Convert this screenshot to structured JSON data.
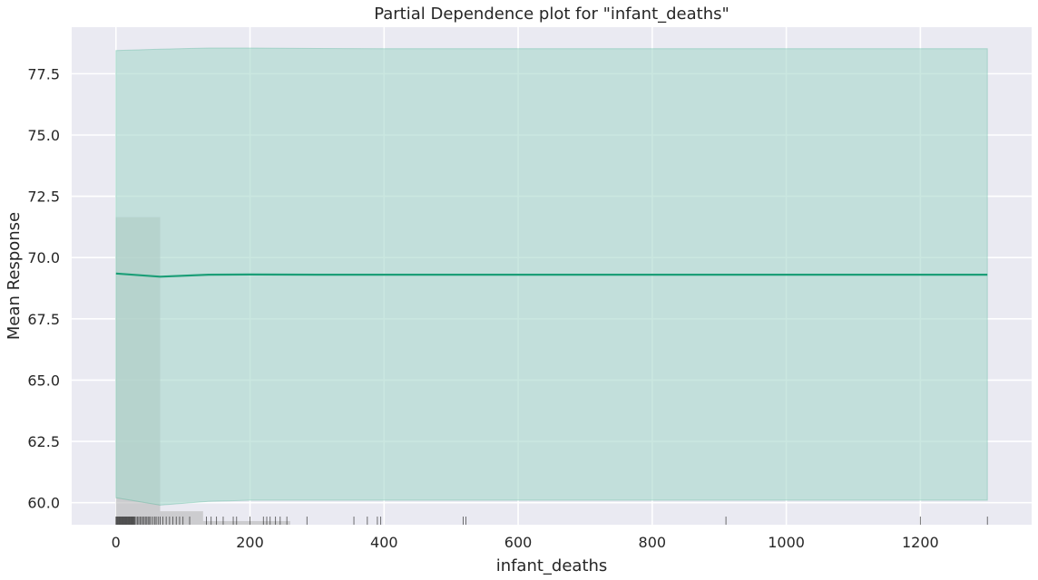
{
  "chart_data": {
    "type": "line",
    "title": "Partial Dependence plot for \"infant_deaths\"",
    "xlabel": "infant_deaths",
    "ylabel": "Mean Response",
    "xlim": [
      -66,
      1366
    ],
    "ylim": [
      59.1,
      79.4
    ],
    "xticks": [
      0,
      200,
      400,
      600,
      800,
      1000,
      1200
    ],
    "yticks": [
      60.0,
      62.5,
      65.0,
      67.5,
      70.0,
      72.5,
      75.0,
      77.5
    ],
    "grid": true,
    "colors": {
      "background": "#eaeaf2",
      "grid": "#ffffff",
      "line": "#1b9e77",
      "band": "#a6d7cb",
      "histogram": "#b3b3b3",
      "rug": "#222222"
    },
    "series": [
      {
        "x": [
          0,
          66,
          138,
          200,
          300,
          400,
          500,
          600,
          700,
          800,
          900,
          1000,
          1100,
          1200,
          1300
        ],
        "y": [
          69.35,
          69.22,
          69.3,
          69.31,
          69.3,
          69.3,
          69.3,
          69.3,
          69.3,
          69.3,
          69.3,
          69.3,
          69.3,
          69.3,
          69.3
        ],
        "lower": [
          60.2,
          59.9,
          60.05,
          60.1,
          60.1,
          60.1,
          60.1,
          60.1,
          60.1,
          60.1,
          60.1,
          60.1,
          60.1,
          60.1,
          60.1
        ],
        "upper": [
          78.45,
          78.5,
          78.55,
          78.55,
          78.53,
          78.52,
          78.52,
          78.52,
          78.52,
          78.52,
          78.52,
          78.52,
          78.52,
          78.52,
          78.52
        ]
      }
    ],
    "histogram": {
      "bins": [
        [
          0,
          66,
          71.65
        ],
        [
          66,
          130,
          59.65
        ],
        [
          130,
          260,
          59.25
        ]
      ]
    },
    "rug": [
      0,
      1,
      2,
      3,
      4,
      5,
      6,
      7,
      8,
      9,
      10,
      11,
      12,
      13,
      14,
      15,
      16,
      17,
      18,
      19,
      20,
      21,
      22,
      23,
      24,
      25,
      26,
      27,
      28,
      30,
      32,
      34,
      36,
      38,
      40,
      42,
      44,
      46,
      48,
      50,
      52,
      55,
      58,
      60,
      63,
      66,
      70,
      75,
      80,
      85,
      90,
      95,
      100,
      110,
      135,
      142,
      150,
      160,
      175,
      180,
      200,
      220,
      225,
      230,
      238,
      245,
      255,
      285,
      355,
      375,
      390,
      395,
      518,
      522,
      910,
      1200,
      1300
    ]
  }
}
